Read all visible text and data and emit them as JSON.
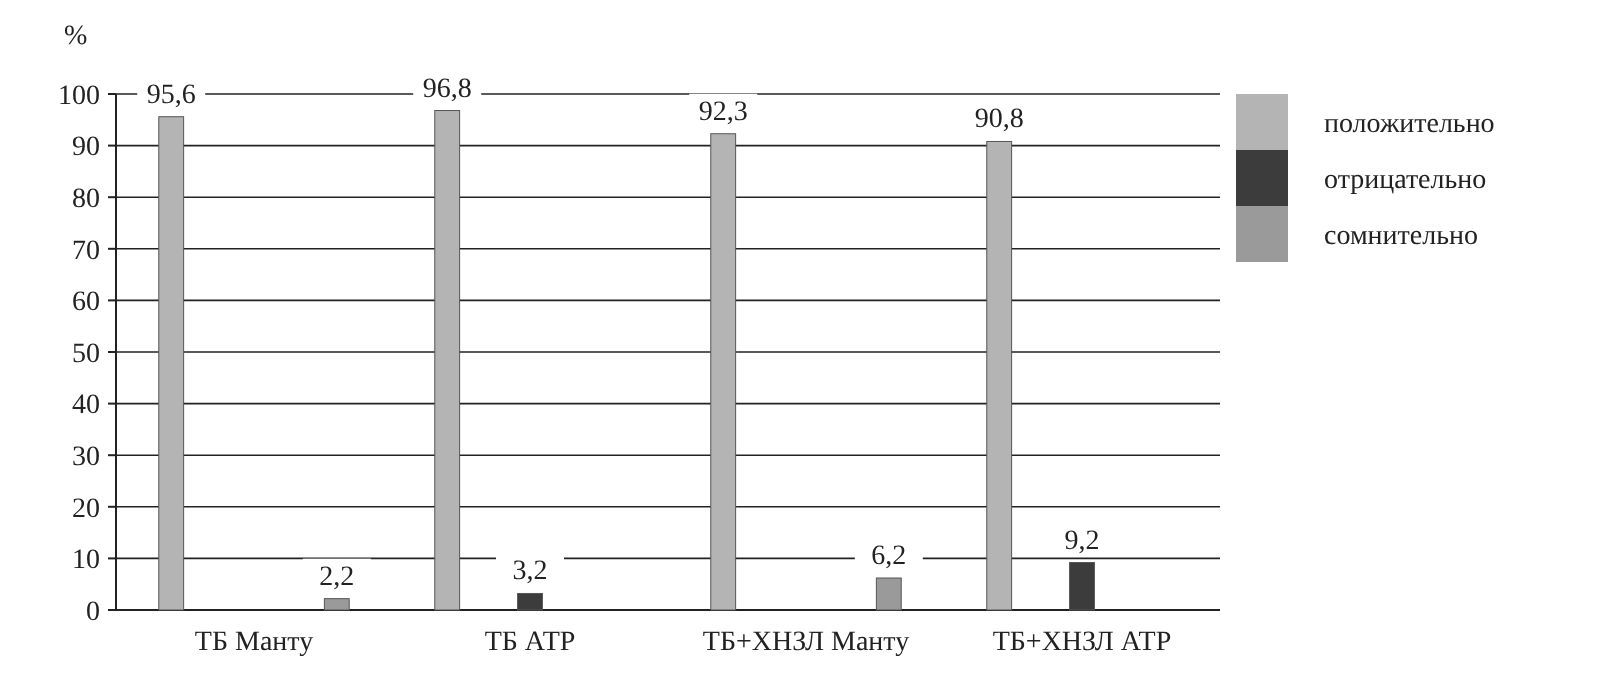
{
  "chart_data": {
    "type": "bar",
    "ylabel": "%",
    "categories": [
      "ТБ Манту",
      "ТБ АТР",
      "ТБ+ХНЗЛ Манту",
      "ТБ+ХНЗЛ АТР"
    ],
    "series": [
      {
        "name": "положительно",
        "color": "#b4b4b4",
        "values": [
          95.6,
          96.8,
          92.3,
          90.8
        ],
        "value_labels": [
          "95,6",
          "96,8",
          "92,3",
          "90,8"
        ]
      },
      {
        "name": "отрицательно",
        "color": "#3c3c3c",
        "values": [
          null,
          3.2,
          null,
          9.2
        ],
        "value_labels": [
          null,
          "3,2",
          null,
          "9,2"
        ]
      },
      {
        "name": "сомнительно",
        "color": "#9a9a9a",
        "values": [
          2.2,
          null,
          6.2,
          null
        ],
        "value_labels": [
          "2,2",
          null,
          "6,2",
          null
        ]
      }
    ],
    "ylim": [
      0,
      100
    ],
    "yticks": [
      0,
      10,
      20,
      30,
      40,
      50,
      60,
      70,
      80,
      90,
      100
    ],
    "grid": "y",
    "legend": "top right"
  }
}
